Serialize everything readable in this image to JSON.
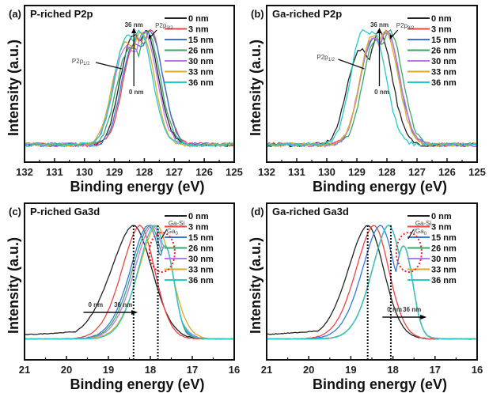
{
  "chart_data": [
    {
      "type": "line",
      "panel_label": "(a)",
      "title": "P-riched P2p",
      "xlabel": "Binding energy (eV)",
      "ylabel": "Intensity (a.u.)",
      "xlim": [
        132,
        125
      ],
      "x_reversed": true,
      "xticks": [
        "132",
        "131",
        "130",
        "129",
        "128",
        "127",
        "126",
        "125"
      ],
      "xtick_values": [
        132,
        131,
        130,
        129,
        128,
        127,
        126,
        125
      ],
      "ylim": [
        0,
        1.2
      ],
      "legend_position": "top-right",
      "series": [
        {
          "name": "0 nm",
          "color": "#222222",
          "peak": 127.95,
          "shoulder": 128.5
        },
        {
          "name": "3 nm",
          "color": "#ee4444",
          "peak": 127.8,
          "shoulder": 128.4
        },
        {
          "name": "15 nm",
          "color": "#3377dd",
          "peak": 127.8,
          "shoulder": 128.45
        },
        {
          "name": "26 nm",
          "color": "#33aa66",
          "peak": 127.9,
          "shoulder": 128.6
        },
        {
          "name": "30 nm",
          "color": "#bb77ee",
          "peak": 128.0,
          "shoulder": 128.7
        },
        {
          "name": "33 nm",
          "color": "#ddaa22",
          "peak": 128.1,
          "shoulder": 128.75
        },
        {
          "name": "36 nm",
          "color": "#22cccc",
          "peak": 128.15,
          "shoulder": 128.7
        }
      ],
      "annotations": [
        {
          "text": "P2p3/2",
          "x": 127.85
        },
        {
          "text": "P2p1/2",
          "x": 128.7
        },
        {
          "text": "36 nm",
          "x": 128.35,
          "role": "arrow-top"
        },
        {
          "text": "0 nm",
          "x": 128.35,
          "role": "arrow-bottom"
        }
      ]
    },
    {
      "type": "line",
      "panel_label": "(b)",
      "title": "Ga-riched P2p",
      "xlabel": "Binding energy (eV)",
      "ylabel": "Intensity (a.u.)",
      "xlim": [
        132,
        125
      ],
      "x_reversed": true,
      "xticks": [
        "132",
        "131",
        "130",
        "129",
        "128",
        "127",
        "126",
        "125"
      ],
      "xtick_values": [
        132,
        131,
        130,
        129,
        128,
        127,
        126,
        125
      ],
      "ylim": [
        0,
        1.2
      ],
      "legend_position": "top-right",
      "series": [
        {
          "name": "0 nm",
          "color": "#222222",
          "peak": 128.25,
          "shoulder": 129.0
        },
        {
          "name": "3 nm",
          "color": "#ee4444",
          "peak": 128.0,
          "shoulder": 128.6
        },
        {
          "name": "15 nm",
          "color": "#3377dd",
          "peak": 128.0,
          "shoulder": 128.6
        },
        {
          "name": "26 nm",
          "color": "#33aa66",
          "peak": 127.9,
          "shoulder": 128.5
        },
        {
          "name": "30 nm",
          "color": "#bb77ee",
          "peak": 128.0,
          "shoulder": 128.6
        },
        {
          "name": "33 nm",
          "color": "#ddaa22",
          "peak": 128.05,
          "shoulder": 128.6
        },
        {
          "name": "36 nm",
          "color": "#22cccc",
          "peak": 128.45,
          "shoulder": 128.9
        }
      ],
      "annotations": [
        {
          "text": "P2p3/2",
          "x": 127.9
        },
        {
          "text": "P2p1/2",
          "x": 128.7
        },
        {
          "text": "36 nm",
          "x": 128.25,
          "role": "arrow-top"
        },
        {
          "text": "0 nm",
          "x": 128.25,
          "role": "arrow-bottom"
        }
      ]
    },
    {
      "type": "line",
      "panel_label": "(c)",
      "title": "P-riched Ga3d",
      "xlabel": "Binding energy (eV)",
      "ylabel": "Intensity (a.u.)",
      "xlim": [
        21,
        16
      ],
      "x_reversed": true,
      "xticks": [
        "21",
        "20",
        "19",
        "18",
        "17",
        "16"
      ],
      "xtick_values": [
        21,
        20,
        19,
        18,
        17,
        16
      ],
      "ylim": [
        0,
        1.2
      ],
      "legend_position": "top-right",
      "series": [
        {
          "name": "0 nm",
          "color": "#222222",
          "peak": 18.4,
          "width": 0.75
        },
        {
          "name": "3 nm",
          "color": "#ee4444",
          "peak": 18.25,
          "width": 0.6
        },
        {
          "name": "15 nm",
          "color": "#3377dd",
          "peak": 18.05,
          "width": 0.6
        },
        {
          "name": "26 nm",
          "color": "#33aa66",
          "peak": 18.0,
          "width": 0.6
        },
        {
          "name": "30 nm",
          "color": "#bb77ee",
          "peak": 17.95,
          "width": 0.6
        },
        {
          "name": "33 nm",
          "color": "#ddaa22",
          "peak": 17.85,
          "width": 0.6
        },
        {
          "name": "36 nm",
          "color": "#22cccc",
          "peak": 17.9,
          "width": 0.55
        }
      ],
      "annotations": [
        {
          "text": "Ga-Si",
          "x": 17.7
        },
        {
          "text": "Ga0",
          "x": 17.7
        },
        {
          "text": "0 nm",
          "x": 19.5,
          "role": "arrow-start"
        },
        {
          "text": "36 nm",
          "x": 18.3,
          "role": "arrow-end"
        },
        {
          "text": "peak marker",
          "x": 18.4,
          "role": "dotted-line"
        },
        {
          "text": "peak marker",
          "x": 17.82,
          "role": "dotted-line"
        }
      ]
    },
    {
      "type": "line",
      "panel_label": "(d)",
      "title": "Ga-riched Ga3d",
      "xlabel": "Binding energy (eV)",
      "ylabel": "Intensity (a.u.)",
      "xlim": [
        21,
        16
      ],
      "x_reversed": true,
      "xticks": [
        "21",
        "20",
        "19",
        "18",
        "17",
        "16"
      ],
      "xtick_values": [
        21,
        20,
        19,
        18,
        17,
        16
      ],
      "ylim": [
        0,
        1.2
      ],
      "legend_position": "top-right",
      "series": [
        {
          "name": "0 nm",
          "color": "#222222",
          "peak": 18.6,
          "width": 0.65
        },
        {
          "name": "3 nm",
          "color": "#ee4444",
          "peak": 18.45,
          "width": 0.6
        },
        {
          "name": "15 nm",
          "color": "#3377dd",
          "peak": 18.3,
          "width": 0.6
        },
        {
          "name": "26 nm",
          "color": "#33aa66",
          "peak": 18.1,
          "width": 0.55
        },
        {
          "name": "30 nm",
          "color": "#bb77ee",
          "peak": 18.1,
          "width": 0.55
        },
        {
          "name": "33 nm",
          "color": "#ddaa22",
          "peak": 18.1,
          "width": 0.55
        },
        {
          "name": "36 nm",
          "color": "#22cccc",
          "peak": 18.1,
          "width": 0.55
        }
      ],
      "annotations": [
        {
          "text": "Ga-Si",
          "x": 17.6
        },
        {
          "text": "/Ga0",
          "x": 17.6
        },
        {
          "text": "0 nm",
          "x": 18.25,
          "role": "arrow-start"
        },
        {
          "text": "36 nm",
          "x": 17.2,
          "role": "arrow-end"
        },
        {
          "text": "peak marker",
          "x": 18.6,
          "role": "dotted-line"
        },
        {
          "text": "peak marker",
          "x": 18.05,
          "role": "dotted-line"
        }
      ]
    }
  ]
}
